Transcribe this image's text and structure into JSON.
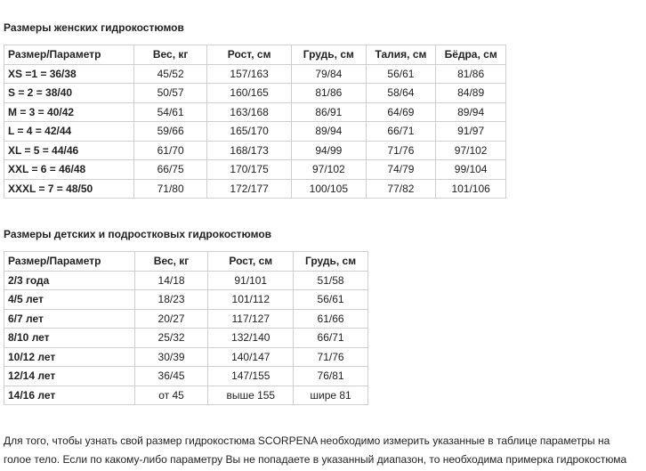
{
  "women": {
    "title": "Размеры женских гидрокостюмов",
    "headers": [
      "Размер/Параметр",
      "Вес, кг",
      "Рост, см",
      "Грудь, см",
      "Талия, см",
      "Бёдра, см"
    ],
    "rows": [
      [
        "XS =1 = 36/38",
        "45/52",
        "157/163",
        "79/84",
        "56/61",
        "81/86"
      ],
      [
        "S = 2 = 38/40",
        "50/57",
        "160/165",
        "81/86",
        "58/64",
        "84/89"
      ],
      [
        "M = 3 = 40/42",
        "54/61",
        "163/168",
        "86/91",
        "64/69",
        "89/94"
      ],
      [
        "L = 4 = 42/44",
        "59/66",
        "165/170",
        "89/94",
        "66/71",
        "91/97"
      ],
      [
        "XL = 5 = 44/46",
        "61/70",
        "168/173",
        "94/99",
        "71/76",
        "97/102"
      ],
      [
        "XXL = 6 = 46/48",
        "66/75",
        "170/175",
        "97/102",
        "74/79",
        "99/104"
      ],
      [
        "XXXL = 7 = 48/50",
        "71/80",
        "172/177",
        "100/105",
        "77/82",
        "101/106"
      ]
    ]
  },
  "kids": {
    "title": "Размеры детских и подростковых гидрокостюмов",
    "headers": [
      "Размер/Параметр",
      "Вес, кг",
      "Рост, см",
      "Грудь, см"
    ],
    "rows": [
      [
        "2/3 года",
        "14/18",
        "91/101",
        "51/58"
      ],
      [
        "4/5 лет",
        "18/23",
        "101/112",
        "56/61"
      ],
      [
        "6/7 лет",
        "20/27",
        "117/127",
        "61/66"
      ],
      [
        "8/10 лет",
        "25/32",
        "132/140",
        "66/71"
      ],
      [
        "10/12 лет",
        "30/39",
        "140/147",
        "71/76"
      ],
      [
        "12/14 лет",
        "36/45",
        "147/155",
        "76/81"
      ],
      [
        "14/16 лет",
        "от 45",
        "выше 155",
        "шире 81"
      ]
    ]
  },
  "note": "Для того, чтобы узнать свой размер гидрокостюма SCORPENA необходимо измерить указанные в таблице параметры на голое тело. Если по какому-либо параметру Вы не попадаете в указанный диапазон, то необходима примерка гидрокостюма"
}
